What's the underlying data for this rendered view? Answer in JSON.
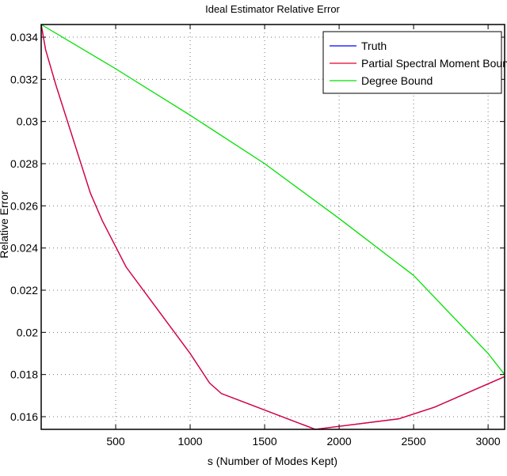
{
  "chart_data": {
    "type": "line",
    "title": "Ideal Estimator Relative Error",
    "xlabel": "s (Number of Modes Kept)",
    "ylabel": "Relative Error",
    "xlim": [
      0,
      3111
    ],
    "ylim": [
      0.0154,
      0.0346
    ],
    "xticks": [
      500,
      1000,
      1500,
      2000,
      2500,
      3000
    ],
    "yticks": [
      0.016,
      0.018,
      0.02,
      0.022,
      0.024,
      0.026,
      0.028,
      0.03,
      0.032,
      0.034
    ],
    "ytick_labels": [
      "0.016",
      "0.018",
      "0.02",
      "0.022",
      "0.024",
      "0.026",
      "0.028",
      "0.03",
      "0.032",
      "0.034"
    ],
    "grid": true,
    "legend_position": "top-right",
    "series": [
      {
        "name": "Truth",
        "color": "#0000ff",
        "x": [
          0,
          30,
          100,
          330,
          410,
          570,
          1000,
          1130,
          1210,
          1840,
          2400,
          2640,
          3111
        ],
        "y": [
          0.0346,
          0.0334,
          0.0317,
          0.0266,
          0.0253,
          0.0231,
          0.019,
          0.0176,
          0.0171,
          0.0154,
          0.0159,
          0.01645,
          0.0179
        ]
      },
      {
        "name": "Partial Spectral Moment Bound",
        "color": "#e8002a",
        "x": [
          0,
          30,
          100,
          330,
          410,
          570,
          1000,
          1130,
          1210,
          1840,
          2400,
          2640,
          3111
        ],
        "y": [
          0.0346,
          0.0334,
          0.0317,
          0.0266,
          0.0253,
          0.0231,
          0.019,
          0.0176,
          0.0171,
          0.0154,
          0.0159,
          0.01645,
          0.0179
        ]
      },
      {
        "name": "Degree Bound",
        "color": "#00e000",
        "x": [
          0,
          500,
          1000,
          1500,
          2000,
          2500,
          3000,
          3111
        ],
        "y": [
          0.0346,
          0.0325,
          0.0303,
          0.028,
          0.0254,
          0.0227,
          0.019,
          0.018
        ]
      }
    ]
  }
}
